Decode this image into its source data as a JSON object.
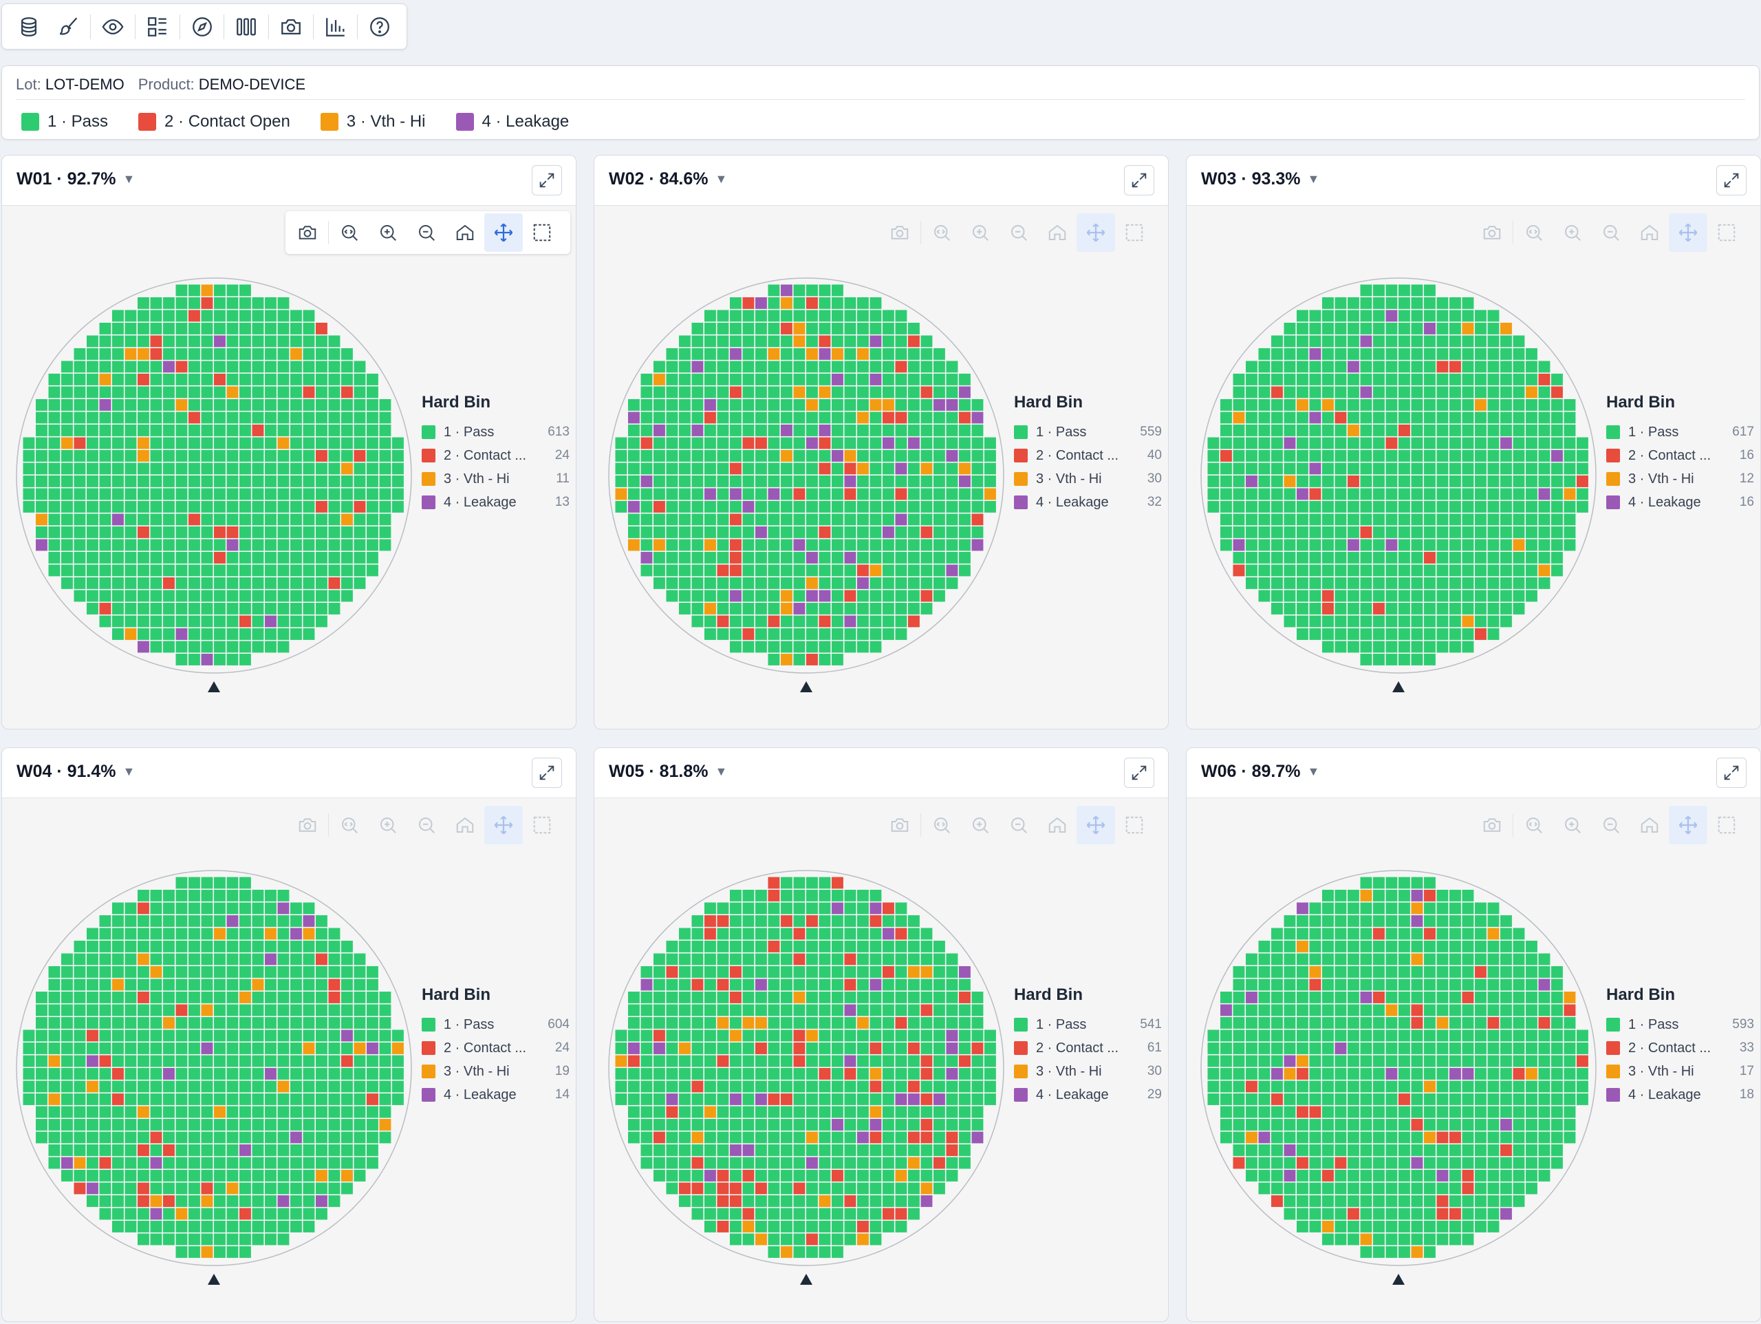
{
  "toolbar": {
    "buttons": [
      {
        "name": "layers-icon"
      },
      {
        "name": "brush-icon"
      },
      {
        "name": "eye-icon"
      },
      {
        "name": "list-grid-icon"
      },
      {
        "name": "compass-icon"
      },
      {
        "name": "columns-icon"
      },
      {
        "name": "camera-icon"
      },
      {
        "name": "bar-chart-icon"
      },
      {
        "name": "help-icon"
      }
    ]
  },
  "info": {
    "lot_label": "Lot:",
    "lot_value": "LOT-DEMO",
    "product_label": "Product:",
    "product_value": "DEMO-DEVICE"
  },
  "bins": [
    {
      "id": 1,
      "label": "1 · Pass",
      "short": "1 · Pass",
      "color": "#2ecc71"
    },
    {
      "id": 2,
      "label": "2 · Contact Open",
      "short": "2 · Contact ...",
      "color": "#e74c3c"
    },
    {
      "id": 3,
      "label": "3 · Vth - Hi",
      "short": "3 · Vth - Hi",
      "color": "#f39c12"
    },
    {
      "id": 4,
      "label": "4 · Leakage",
      "short": "4 · Leakage",
      "color": "#9b59b6"
    }
  ],
  "legend_title": "Hard Bin",
  "wafers": [
    {
      "title": "W01 · 92.7%",
      "counts": [
        "613",
        "24",
        "11",
        "13"
      ],
      "seed": 11,
      "active": true
    },
    {
      "title": "W02 · 84.6%",
      "counts": [
        "559",
        "40",
        "30",
        "32"
      ],
      "seed": 23,
      "active": false
    },
    {
      "title": "W03 · 93.3%",
      "counts": [
        "617",
        "16",
        "12",
        "16"
      ],
      "seed": 37,
      "active": false
    },
    {
      "title": "W04 · 91.4%",
      "counts": [
        "604",
        "24",
        "19",
        "14"
      ],
      "seed": 41,
      "active": false
    },
    {
      "title": "W05 · 81.8%",
      "counts": [
        "541",
        "61",
        "30",
        "29"
      ],
      "seed": 53,
      "active": false
    },
    {
      "title": "W06 · 89.7%",
      "counts": [
        "593",
        "33",
        "17",
        "18"
      ],
      "seed": 67,
      "active": false
    }
  ]
}
